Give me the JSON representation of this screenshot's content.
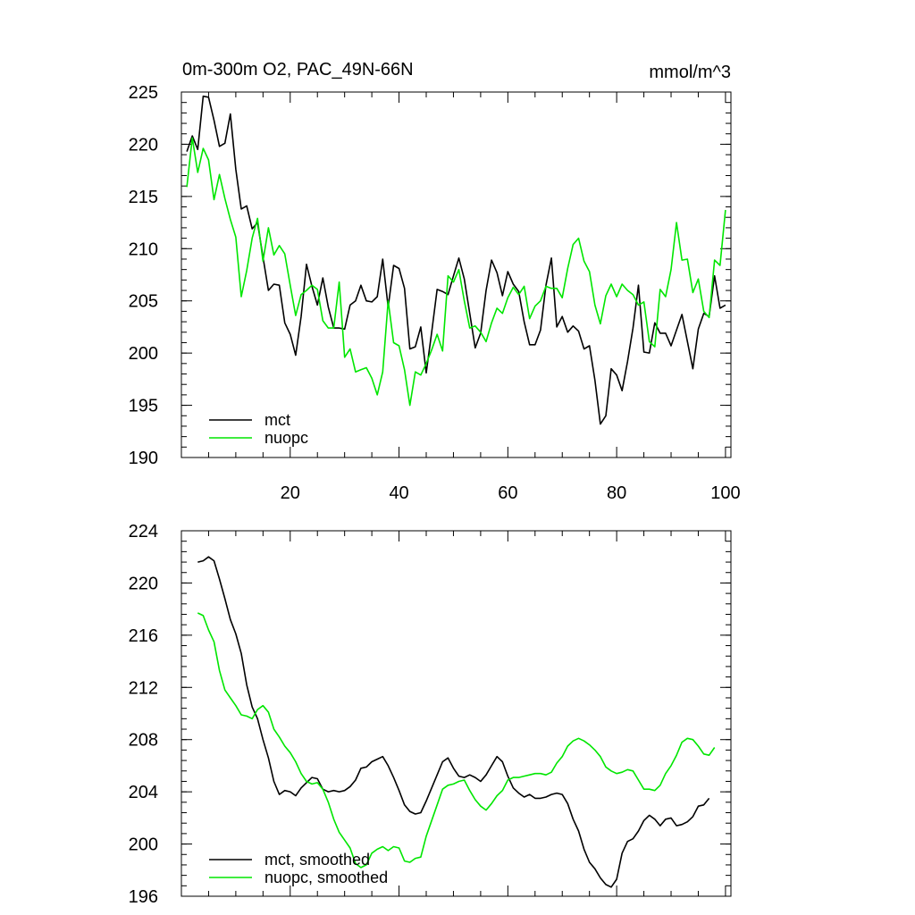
{
  "chart_data": [
    {
      "type": "line",
      "title": "0m-300m O2, PAC_49N-66N",
      "units": "mmol/m^3",
      "xlim": [
        0,
        101
      ],
      "ylim": [
        190,
        225
      ],
      "yticks": [
        190,
        195,
        200,
        205,
        210,
        215,
        220,
        225
      ],
      "xticks": [
        20,
        40,
        60,
        80,
        100
      ],
      "grid": false,
      "legend_position": "bottom-left",
      "colors": {
        "mct": "#000000",
        "nuopc": "#00e600"
      },
      "series": [
        {
          "name": "mct",
          "color": "#000000",
          "x_start": 1,
          "x_step": 1,
          "values": [
            219.3,
            220.8,
            219.5,
            224.6,
            224.5,
            222.3,
            219.8,
            220.1,
            222.9,
            217.6,
            213.8,
            214.1,
            211.9,
            212.5,
            209.2,
            206.0,
            206.6,
            206.5,
            202.9,
            201.8,
            199.8,
            203.5,
            208.5,
            206.4,
            204.6,
            207.2,
            204.4,
            202.4,
            202.4,
            202.3,
            204.6,
            205.0,
            206.5,
            205.0,
            204.9,
            205.4,
            209.0,
            204.4,
            208.4,
            208.1,
            206.2,
            200.4,
            200.6,
            202.5,
            198.1,
            202.0,
            206.1,
            205.9,
            205.6,
            207.4,
            209.1,
            207.1,
            203.8,
            200.5,
            201.9,
            206.0,
            208.9,
            207.7,
            205.5,
            207.8,
            206.6,
            205.9,
            203.0,
            200.8,
            200.8,
            202.2,
            206.5,
            209.1,
            202.5,
            203.5,
            202.0,
            202.6,
            202.1,
            200.4,
            200.7,
            197.4,
            193.2,
            194.0,
            198.5,
            197.9,
            196.4,
            199.2,
            202.4,
            206.5,
            200.1,
            200.0,
            202.9,
            201.9,
            201.9,
            200.7,
            202.2,
            203.7,
            201.1,
            198.5,
            202.3,
            203.8,
            203.5,
            207.4,
            204.3,
            204.6
          ]
        },
        {
          "name": "nuopc",
          "color": "#00e600",
          "x_start": 1,
          "x_step": 1,
          "values": [
            215.9,
            220.6,
            217.3,
            219.6,
            218.5,
            214.7,
            217.1,
            214.8,
            212.8,
            211.1,
            205.4,
            207.9,
            211.0,
            212.9,
            208.8,
            212.0,
            209.4,
            210.3,
            209.5,
            206.5,
            203.6,
            205.6,
            206.0,
            206.5,
            206.1,
            203.1,
            202.4,
            202.4,
            206.8,
            199.6,
            200.4,
            198.2,
            198.4,
            198.6,
            197.6,
            196.0,
            198.2,
            205.0,
            201.0,
            200.7,
            198.4,
            195.0,
            198.2,
            197.9,
            199.0,
            200.3,
            201.8,
            200.2,
            207.4,
            206.8,
            208.0,
            205.0,
            202.4,
            202.6,
            202.0,
            201.1,
            202.9,
            204.3,
            203.8,
            205.3,
            206.3,
            205.6,
            206.4,
            203.3,
            204.5,
            205.0,
            206.4,
            206.2,
            206.2,
            205.3,
            208.1,
            210.4,
            211.0,
            208.8,
            207.8,
            204.6,
            202.8,
            205.5,
            206.6,
            205.4,
            206.6,
            206.0,
            205.6,
            204.6,
            204.9,
            201.1,
            200.6,
            206.1,
            205.4,
            208.0,
            212.5,
            208.9,
            209.0,
            205.8,
            207.1,
            204.0,
            203.4,
            208.9,
            208.4,
            213.7
          ]
        }
      ]
    },
    {
      "type": "line",
      "xlim": [
        0,
        101
      ],
      "ylim": [
        196,
        224
      ],
      "yticks": [
        196,
        200,
        204,
        208,
        212,
        216,
        220,
        224
      ],
      "xticks": [
        20,
        40,
        60,
        80,
        100
      ],
      "grid": false,
      "legend_position": "bottom-left",
      "series": [
        {
          "name": "mct, smoothed",
          "color": "#000000",
          "x_start": 3,
          "x_step": 1,
          "values": [
            221.6,
            221.7,
            222.0,
            221.7,
            220.3,
            218.8,
            217.2,
            216.1,
            214.6,
            212.2,
            210.5,
            209.6,
            208.0,
            206.6,
            204.8,
            203.8,
            204.1,
            204.0,
            203.7,
            204.3,
            204.7,
            205.1,
            205.0,
            204.2,
            204.0,
            204.1,
            204.0,
            204.1,
            204.4,
            204.9,
            205.8,
            205.9,
            206.3,
            206.5,
            206.7,
            206.0,
            205.1,
            204.1,
            203.0,
            202.5,
            202.3,
            202.4,
            203.3,
            204.3,
            205.3,
            206.3,
            206.6,
            205.8,
            205.2,
            205.1,
            205.3,
            205.1,
            204.8,
            205.3,
            206.0,
            206.7,
            206.3,
            205.2,
            204.3,
            203.9,
            203.6,
            203.8,
            203.5,
            203.5,
            203.6,
            203.8,
            203.9,
            203.8,
            203.1,
            201.9,
            201.0,
            199.6,
            198.6,
            198.1,
            197.4,
            196.9,
            196.7,
            197.3,
            199.3,
            200.2,
            200.4,
            201.0,
            201.8,
            202.2,
            201.9,
            201.4,
            201.9,
            202.0,
            201.4,
            201.5,
            201.7,
            202.1,
            202.9,
            203.0,
            203.5
          ]
        },
        {
          "name": "nuopc, smoothed",
          "color": "#00e600",
          "x_start": 3,
          "x_step": 1,
          "values": [
            217.7,
            217.5,
            216.4,
            215.5,
            213.3,
            211.8,
            211.2,
            210.6,
            209.9,
            209.8,
            209.6,
            210.3,
            210.6,
            210.1,
            208.8,
            208.2,
            207.5,
            207.0,
            206.3,
            205.4,
            204.8,
            204.6,
            204.7,
            204.2,
            203.2,
            201.9,
            200.9,
            200.3,
            199.7,
            198.5,
            198.2,
            198.4,
            199.3,
            199.6,
            199.8,
            199.5,
            199.8,
            199.7,
            198.7,
            198.6,
            198.9,
            199.0,
            200.6,
            201.8,
            203.0,
            204.2,
            204.5,
            204.6,
            204.8,
            204.9,
            204.1,
            203.4,
            202.9,
            202.6,
            203.1,
            203.7,
            204.1,
            204.9,
            205.1,
            205.1,
            205.2,
            205.3,
            205.4,
            205.4,
            205.3,
            205.5,
            206.2,
            206.7,
            207.5,
            207.9,
            208.1,
            207.9,
            207.6,
            207.2,
            206.7,
            205.9,
            205.6,
            205.4,
            205.5,
            205.7,
            205.6,
            204.9,
            204.2,
            204.2,
            204.1,
            204.5,
            205.4,
            206.0,
            206.8,
            207.8,
            208.1,
            208.0,
            207.5,
            206.9,
            206.8,
            207.4
          ]
        }
      ]
    }
  ]
}
